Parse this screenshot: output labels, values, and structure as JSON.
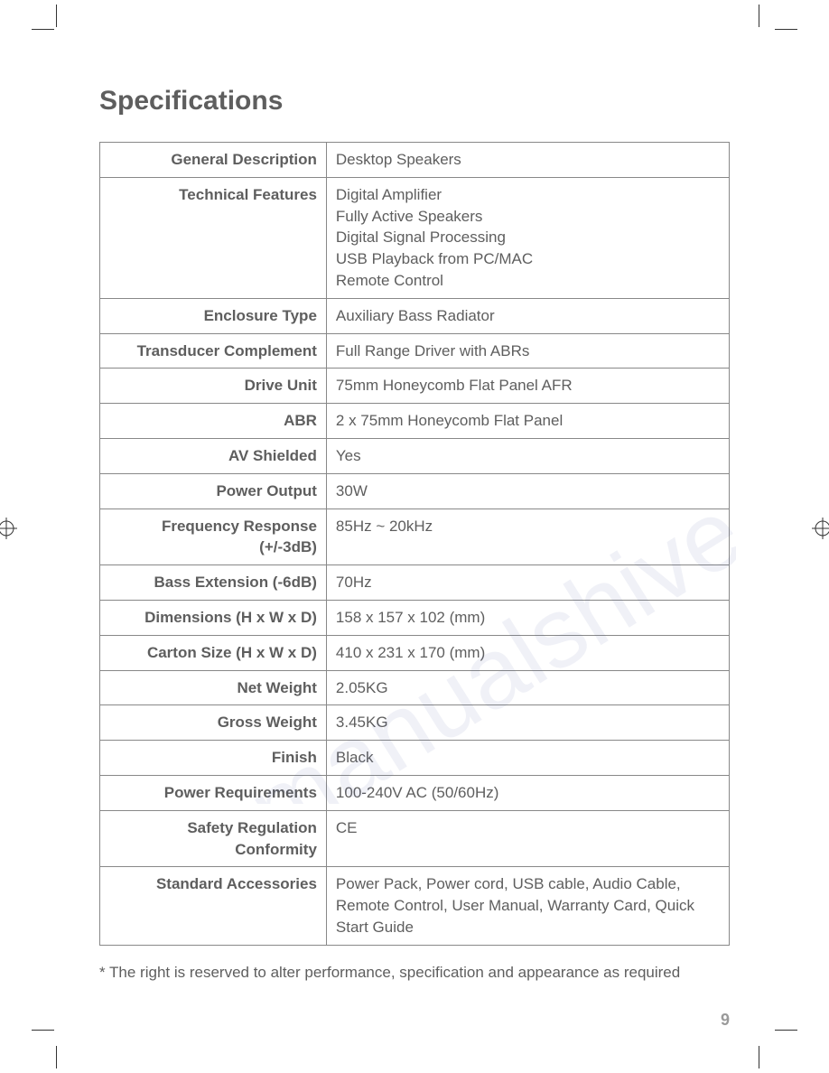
{
  "title": "Specifications",
  "table": {
    "rows": [
      {
        "label": "General Description",
        "value": "Desktop Speakers"
      },
      {
        "label": "Technical Features",
        "value": "Digital Amplifier\nFully Active Speakers\nDigital Signal Processing\nUSB Playback from PC/MAC\nRemote Control"
      },
      {
        "label": "Enclosure Type",
        "value": "Auxiliary Bass Radiator"
      },
      {
        "label": "Transducer Complement",
        "value": "Full Range Driver with ABRs"
      },
      {
        "label": "Drive Unit",
        "value": "75mm Honeycomb Flat Panel AFR"
      },
      {
        "label": "ABR",
        "value": "2 x 75mm Honeycomb Flat Panel"
      },
      {
        "label": "AV Shielded",
        "value": "Yes"
      },
      {
        "label": "Power Output",
        "value": "30W"
      },
      {
        "label": "Frequency Response (+/-3dB)",
        "value": "85Hz ~ 20kHz"
      },
      {
        "label": "Bass Extension (-6dB)",
        "value": "70Hz"
      },
      {
        "label": "Dimensions (H x W x D)",
        "value": "158 x 157 x 102 (mm)"
      },
      {
        "label": "Carton Size (H x W x D)",
        "value": "410 x 231 x 170 (mm)"
      },
      {
        "label": "Net Weight",
        "value": "2.05KG"
      },
      {
        "label": "Gross Weight",
        "value": "3.45KG"
      },
      {
        "label": "Finish",
        "value": "Black"
      },
      {
        "label": "Power Requirements",
        "value": "100-240V AC (50/60Hz)"
      },
      {
        "label": "Safety Regulation Conformity",
        "value": "CE"
      },
      {
        "label": "Standard Accessories",
        "value": "Power Pack, Power cord, USB cable, Audio Cable, Remote Control, User Manual, Warranty Card, Quick Start Guide"
      }
    ]
  },
  "footnote": "* The right is reserved to alter performance, specification and appearance as required",
  "page_number": "9",
  "watermark_text": "manualshive.com",
  "styling": {
    "title_color": "#5e5e5e",
    "title_fontsize": 30,
    "text_color": "#5e5e5e",
    "border_color": "#888888",
    "cell_fontsize": 17,
    "label_column_width_pct": 36,
    "value_column_width_pct": 64,
    "page_number_color": "#9a9a9a",
    "watermark_color": "#4a5a9e",
    "watermark_opacity": 0.08,
    "watermark_rotation_deg": -32,
    "background_color": "#ffffff"
  }
}
